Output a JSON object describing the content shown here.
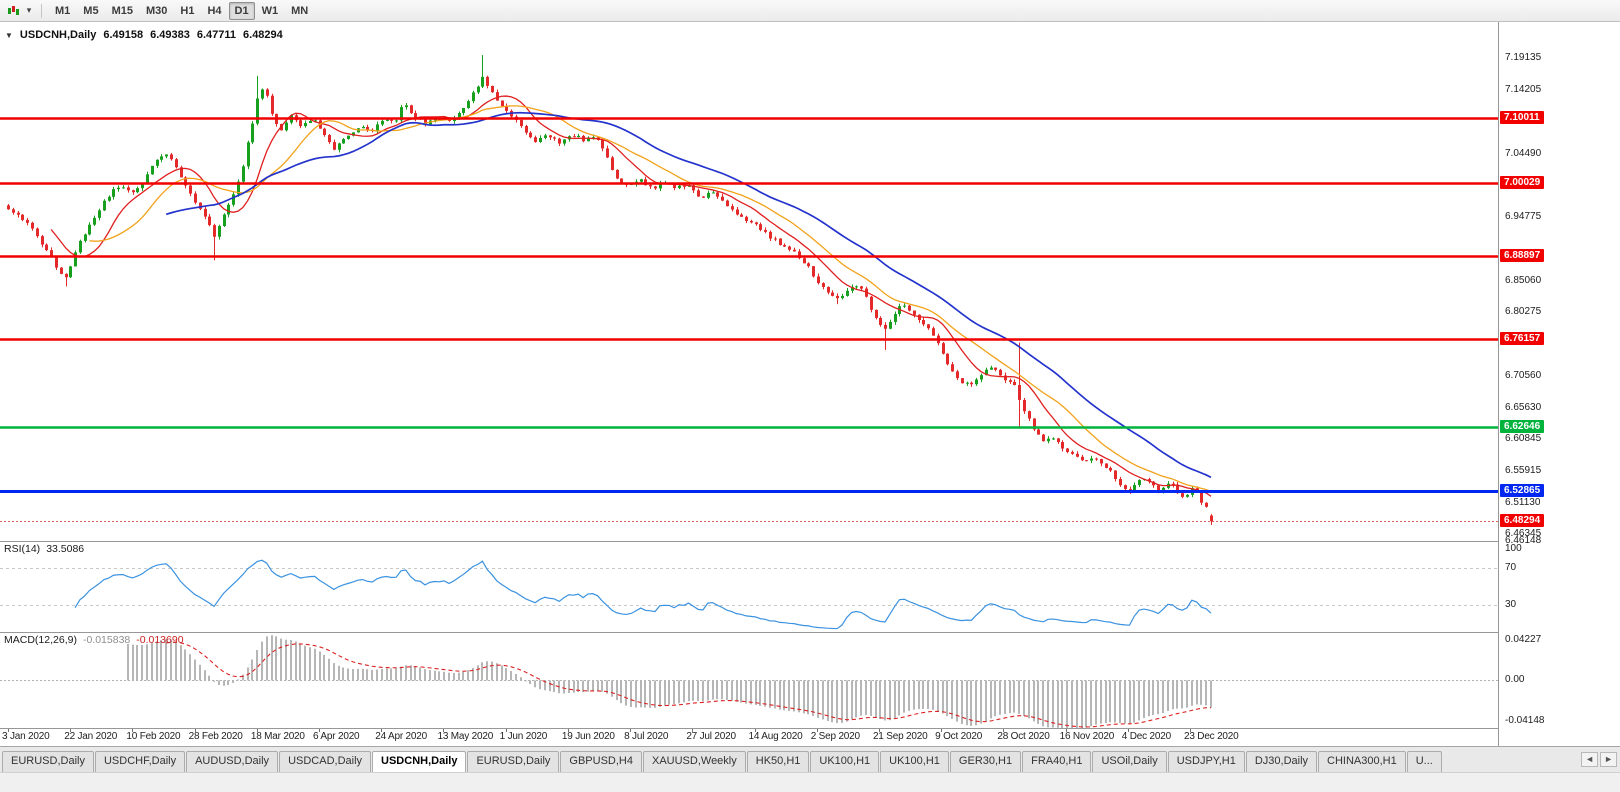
{
  "toolbar": {
    "caret": "▾",
    "timeframes": [
      {
        "label": "M1",
        "active": false
      },
      {
        "label": "M5",
        "active": false
      },
      {
        "label": "M15",
        "active": false
      },
      {
        "label": "M30",
        "active": false
      },
      {
        "label": "H1",
        "active": false
      },
      {
        "label": "H4",
        "active": false
      },
      {
        "label": "D1",
        "active": true
      },
      {
        "label": "W1",
        "active": false
      },
      {
        "label": "MN",
        "active": false
      }
    ]
  },
  "header": {
    "collapse_icon": "▼",
    "symbol_period": "USDCNH,Daily",
    "open": "6.49158",
    "high": "6.49383",
    "low": "6.47711",
    "close": "6.48294"
  },
  "price_axis": {
    "gridline_labels": [
      "7.19135",
      "7.14205",
      "7.04490",
      "6.94775",
      "6.85060",
      "6.80275",
      "6.70560",
      "6.65630",
      "6.60845",
      "6.55915",
      "6.51130",
      "6.46345"
    ],
    "bottom_label": "6.46148"
  },
  "indicators": {
    "rsi": {
      "name": "RSI(14)",
      "value": "33.5086",
      "axis_labels": [
        "100",
        "70",
        "30"
      ],
      "levels": [
        70,
        30
      ],
      "period": 14
    },
    "macd": {
      "name": "MACD(12,26,9)",
      "main_value": "-0.015838",
      "signal_value": "-0.013690",
      "axis_labels": [
        "0.04227",
        "0.00",
        "-0.04148"
      ],
      "params": [
        12,
        26,
        9
      ]
    }
  },
  "date_axis": [
    "3 Jan 2020",
    "22 Jan 2020",
    "10 Feb 2020",
    "28 Feb 2020",
    "18 Mar 2020",
    "6 Apr 2020",
    "24 Apr 2020",
    "13 May 2020",
    "1 Jun 2020",
    "19 Jun 2020",
    "8 Jul 2020",
    "27 Jul 2020",
    "14 Aug 2020",
    "2 Sep 2020",
    "21 Sep 2020",
    "9 Oct 2020",
    "28 Oct 2020",
    "16 Nov 2020",
    "4 Dec 2020",
    "23 Dec 2020"
  ],
  "tabs_bar": {
    "scroll_left": "◄",
    "scroll_right": "►"
  },
  "tabs": [
    {
      "label": "EURUSD,Daily",
      "active": false
    },
    {
      "label": "USDCHF,Daily",
      "active": false
    },
    {
      "label": "AUDUSD,Daily",
      "active": false
    },
    {
      "label": "USDCAD,Daily",
      "active": false
    },
    {
      "label": "USDCNH,Daily",
      "active": true
    },
    {
      "label": "EURUSD,Daily",
      "active": false
    },
    {
      "label": "GBPUSD,H4",
      "active": false
    },
    {
      "label": "XAUUSD,Weekly",
      "active": false
    },
    {
      "label": "HK50,H1",
      "active": false
    },
    {
      "label": "UK100,H1",
      "active": false
    },
    {
      "label": "UK100,H1",
      "active": false
    },
    {
      "label": "GER30,H1",
      "active": false
    },
    {
      "label": "FRA40,H1",
      "active": false
    },
    {
      "label": "USOil,Daily",
      "active": false
    },
    {
      "label": "USDJPY,H1",
      "active": false
    },
    {
      "label": "DJ30,Daily",
      "active": false
    },
    {
      "label": "CHINA300,H1",
      "active": false
    },
    {
      "label": "U...",
      "active": false
    }
  ],
  "chart_data": {
    "type": "candlestick",
    "symbol": "USDCNH",
    "period": "Daily",
    "n_candles": 252,
    "ylim": [
      6.4527,
      7.2464
    ],
    "price_anchors": [
      [
        8,
        6.96
      ],
      [
        20,
        6.95
      ],
      [
        32,
        6.928
      ],
      [
        45,
        6.9
      ],
      [
        58,
        6.868
      ],
      [
        66,
        6.856
      ],
      [
        78,
        6.905
      ],
      [
        92,
        6.94
      ],
      [
        105,
        6.975
      ],
      [
        118,
        6.995
      ],
      [
        130,
        6.985
      ],
      [
        142,
        7.0
      ],
      [
        155,
        7.032
      ],
      [
        165,
        7.048
      ],
      [
        178,
        7.018
      ],
      [
        192,
        6.98
      ],
      [
        205,
        6.948
      ],
      [
        214,
        6.92
      ],
      [
        222,
        6.945
      ],
      [
        232,
        6.978
      ],
      [
        242,
        7.02
      ],
      [
        252,
        7.09
      ],
      [
        258,
        7.135
      ],
      [
        264,
        7.148
      ],
      [
        272,
        7.105
      ],
      [
        280,
        7.075
      ],
      [
        290,
        7.108
      ],
      [
        300,
        7.088
      ],
      [
        312,
        7.098
      ],
      [
        322,
        7.082
      ],
      [
        334,
        7.052
      ],
      [
        346,
        7.068
      ],
      [
        360,
        7.088
      ],
      [
        372,
        7.082
      ],
      [
        385,
        7.1
      ],
      [
        395,
        7.09
      ],
      [
        403,
        7.122
      ],
      [
        412,
        7.106
      ],
      [
        424,
        7.09
      ],
      [
        436,
        7.1
      ],
      [
        449,
        7.096
      ],
      [
        460,
        7.11
      ],
      [
        472,
        7.134
      ],
      [
        483,
        7.162
      ],
      [
        492,
        7.14
      ],
      [
        502,
        7.118
      ],
      [
        510,
        7.106
      ],
      [
        522,
        7.084
      ],
      [
        534,
        7.064
      ],
      [
        546,
        7.076
      ],
      [
        558,
        7.062
      ],
      [
        572,
        7.074
      ],
      [
        584,
        7.066
      ],
      [
        596,
        7.07
      ],
      [
        606,
        7.044
      ],
      [
        616,
        7.008
      ],
      [
        626,
        6.996
      ],
      [
        640,
        7.004
      ],
      [
        652,
        6.992
      ],
      [
        664,
        7.002
      ],
      [
        676,
        6.992
      ],
      [
        688,
        6.998
      ],
      [
        700,
        6.976
      ],
      [
        710,
        6.986
      ],
      [
        722,
        6.972
      ],
      [
        734,
        6.956
      ],
      [
        746,
        6.944
      ],
      [
        758,
        6.932
      ],
      [
        770,
        6.918
      ],
      [
        782,
        6.905
      ],
      [
        794,
        6.894
      ],
      [
        806,
        6.876
      ],
      [
        818,
        6.848
      ],
      [
        828,
        6.83
      ],
      [
        838,
        6.822
      ],
      [
        850,
        6.844
      ],
      [
        862,
        6.836
      ],
      [
        874,
        6.798
      ],
      [
        884,
        6.772
      ],
      [
        892,
        6.79
      ],
      [
        902,
        6.818
      ],
      [
        912,
        6.8
      ],
      [
        922,
        6.784
      ],
      [
        932,
        6.77
      ],
      [
        940,
        6.746
      ],
      [
        950,
        6.716
      ],
      [
        960,
        6.698
      ],
      [
        970,
        6.692
      ],
      [
        980,
        6.706
      ],
      [
        990,
        6.72
      ],
      [
        1000,
        6.706
      ],
      [
        1008,
        6.696
      ],
      [
        1016,
        6.688
      ],
      [
        1021,
        6.662
      ],
      [
        1028,
        6.64
      ],
      [
        1036,
        6.62
      ],
      [
        1044,
        6.604
      ],
      [
        1052,
        6.612
      ],
      [
        1060,
        6.597
      ],
      [
        1068,
        6.589
      ],
      [
        1076,
        6.581
      ],
      [
        1084,
        6.571
      ],
      [
        1092,
        6.58
      ],
      [
        1100,
        6.571
      ],
      [
        1108,
        6.564
      ],
      [
        1116,
        6.547
      ],
      [
        1124,
        6.534
      ],
      [
        1130,
        6.528
      ],
      [
        1136,
        6.541
      ],
      [
        1144,
        6.549
      ],
      [
        1152,
        6.538
      ],
      [
        1158,
        6.528
      ],
      [
        1164,
        6.536
      ],
      [
        1170,
        6.543
      ],
      [
        1176,
        6.529
      ],
      [
        1182,
        6.521
      ],
      [
        1188,
        6.527
      ],
      [
        1194,
        6.534
      ],
      [
        1200,
        6.517
      ],
      [
        1206,
        6.503
      ],
      [
        1211,
        6.483
      ]
    ],
    "spikes": [
      {
        "x": 66,
        "low": 6.842
      },
      {
        "x": 214,
        "low": 6.882
      },
      {
        "x": 258,
        "high": 7.164
      },
      {
        "x": 483,
        "high": 7.196
      },
      {
        "x": 838,
        "low": 6.815
      },
      {
        "x": 884,
        "low": 6.745
      },
      {
        "x": 1021,
        "high": 6.756,
        "low": 6.626
      }
    ],
    "last_candle": {
      "open": 6.49158,
      "high": 6.49383,
      "low": 6.47711,
      "close": 6.48294
    },
    "last_price": 6.48294,
    "levels": [
      {
        "price": 7.10011,
        "label": "7.10011",
        "color": "#f20000",
        "width": 2.4
      },
      {
        "price": 7.00029,
        "label": "7.00029",
        "color": "#f20000",
        "width": 2.4
      },
      {
        "price": 6.88897,
        "label": "6.88897",
        "color": "#f20000",
        "width": 2.4
      },
      {
        "price": 6.76157,
        "label": "6.76157",
        "color": "#f20000",
        "width": 2.4
      },
      {
        "price": 6.62646,
        "label": "6.62646",
        "color": "#00b33c",
        "width": 2.4
      },
      {
        "price": 6.52865,
        "label": "6.52865",
        "color": "#0028f0",
        "width": 3
      }
    ],
    "current_badge": {
      "label": "6.48294",
      "color": "#f20000"
    },
    "ma": [
      {
        "period": 10,
        "color": "#e01f1f",
        "width": 1.3
      },
      {
        "period": 18,
        "color": "#f2a21a",
        "width": 1.3
      },
      {
        "period": 34,
        "color": "#2433cc",
        "width": 1.7
      }
    ],
    "rsi_period": 14,
    "macd_params": [
      12,
      26,
      9
    ],
    "macd_ylim": [
      -0.04148,
      0.04227
    ],
    "colors": {
      "up": "#16a01e",
      "down": "#e32929",
      "rsi": "#3b92e0",
      "macd_hist": "#b6b6b6",
      "macd_signal": "#dd2222",
      "current_line": "#e06060",
      "dash_level": "#c8c8c8"
    }
  }
}
